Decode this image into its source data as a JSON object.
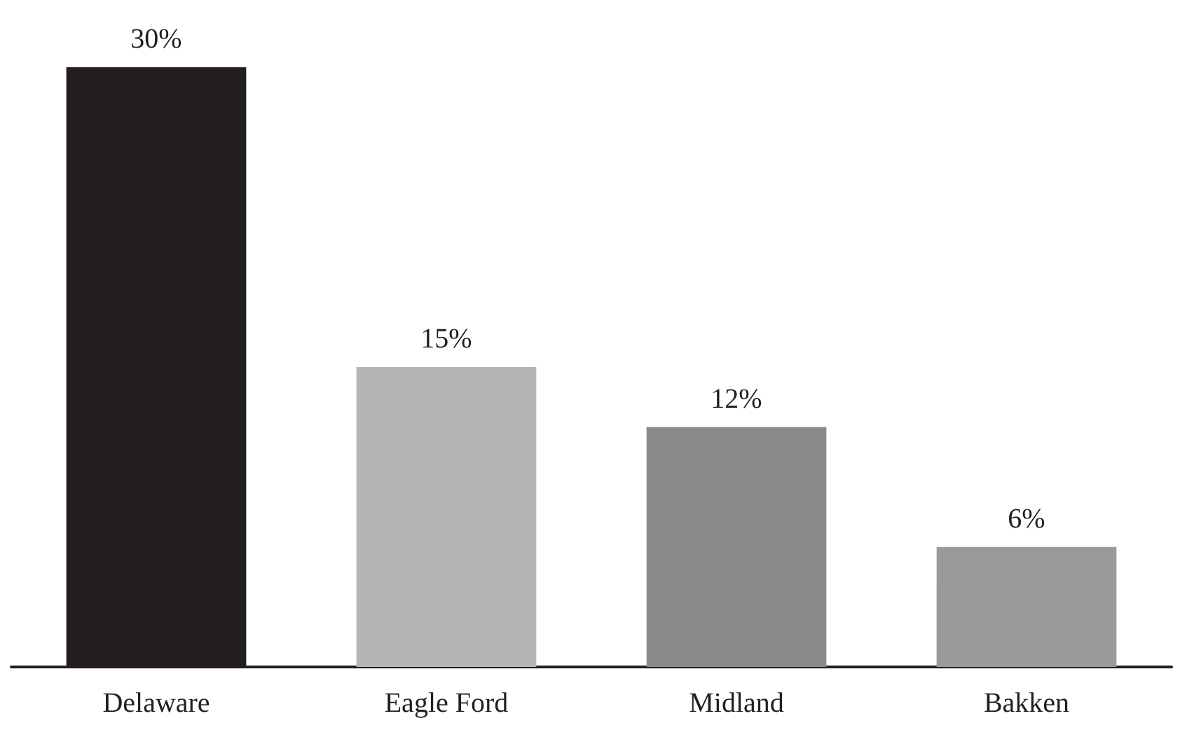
{
  "chart_data": {
    "type": "bar",
    "categories": [
      "Delaware",
      "Eagle Ford",
      "Midland",
      "Bakken"
    ],
    "values": [
      30,
      15,
      12,
      6
    ],
    "value_labels": [
      "30%",
      "15%",
      "12%",
      "6%"
    ],
    "colors": [
      "#231f20",
      "#b4b4b4",
      "#8a8a8a",
      "#9a9a9a"
    ]
  }
}
